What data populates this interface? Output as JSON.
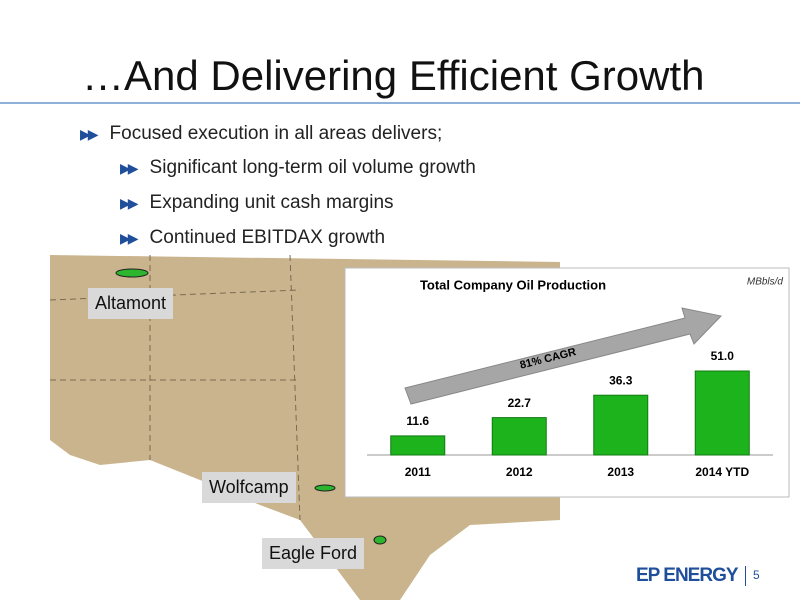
{
  "slide": {
    "title": "…And Delivering Efficient Growth",
    "bullets": [
      "Focused execution in all areas delivers;"
    ],
    "sub_bullets": [
      "Significant long-term oil volume growth",
      "Expanding unit cash margins",
      "Continued EBITDAX growth"
    ],
    "map_labels": [
      "Altamont",
      "Wolfcamp",
      "Eagle Ford"
    ],
    "logo": "EP ENERGY",
    "page_number": "5"
  },
  "chart_data": {
    "type": "bar",
    "title": "Total Company Oil Production",
    "unit": "MBbls/d",
    "categories": [
      "2011",
      "2012",
      "2013",
      "2014 YTD"
    ],
    "values": [
      11.6,
      22.7,
      36.3,
      51.0
    ],
    "value_labels": [
      "11.6",
      "22.7",
      "36.3",
      "51.0"
    ],
    "color": "#1db31d",
    "annotation": "81% CAGR"
  }
}
